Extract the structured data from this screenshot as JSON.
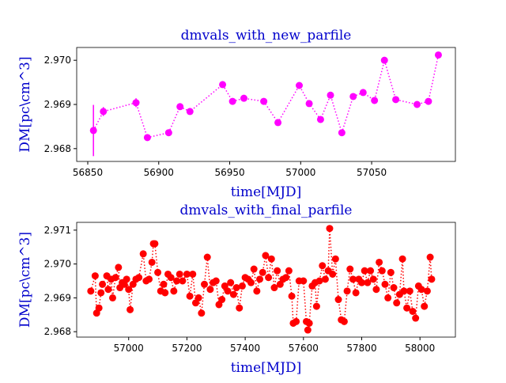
{
  "chart_data": [
    {
      "type": "line",
      "title": "dmvals_with_new_parfile",
      "xlabel": "time[MJD]",
      "ylabel": "DM[pc\\cm^3]",
      "color": "#ff00ff",
      "marker": "o",
      "linestyle": "dotted",
      "x": [
        56854,
        56861,
        56884,
        56892,
        56907,
        56915,
        56922,
        56945,
        56952,
        56960,
        56974,
        56984,
        56999,
        57006,
        57014,
        57021,
        57029,
        57037,
        57044,
        57052,
        57059,
        57067,
        57082,
        57090,
        57097
      ],
      "values": [
        2.96841,
        2.96884,
        2.96904,
        2.96825,
        2.96836,
        2.96895,
        2.96884,
        2.96945,
        2.96907,
        2.96914,
        2.96907,
        2.96859,
        2.96943,
        2.96902,
        2.96866,
        2.96921,
        2.96836,
        2.96918,
        2.96927,
        2.96909,
        2.97,
        2.96911,
        2.969,
        2.96907,
        2.97012
      ],
      "errors": [
        0.00058,
        0.0001,
        0.0001,
        5e-05,
        5e-05,
        5e-05,
        5e-05,
        5e-05,
        5e-05,
        5e-05,
        5e-05,
        5e-05,
        5e-05,
        5e-05,
        5e-05,
        5e-05,
        5e-05,
        5e-05,
        5e-05,
        5e-05,
        5e-05,
        5e-05,
        5e-05,
        5e-05,
        5e-05
      ],
      "xlim": [
        56842.2,
        57109
      ],
      "xticks": [
        56850,
        56900,
        56950,
        57000,
        57050
      ],
      "ylim": [
        2.96771,
        2.97029
      ],
      "yticks": [
        2.968,
        2.969,
        {
          "value": 2.97,
          "label": "2.970"
        }
      ]
    },
    {
      "type": "line",
      "title": "dmvals_with_final_parfile",
      "xlabel": "time[MJD]",
      "ylabel": "DM[pc\\cm^3]",
      "color": "#ff0000",
      "marker": "o",
      "linestyle": "dotted",
      "x": [
        56870,
        56885,
        56890,
        56898,
        56905,
        56910,
        56925,
        56930,
        56940,
        56945,
        56955,
        56965,
        56970,
        56978,
        56985,
        56993,
        57000,
        57005,
        57015,
        57025,
        57035,
        57050,
        57060,
        57070,
        57080,
        57085,
        57090,
        57100,
        57110,
        57120,
        57125,
        57135,
        57145,
        57155,
        57165,
        57175,
        57185,
        57200,
        57210,
        57220,
        57230,
        57240,
        57250,
        57260,
        57270,
        57280,
        57290,
        57300,
        57310,
        57320,
        57330,
        57340,
        57350,
        57360,
        57370,
        57380,
        57390,
        57400,
        57410,
        57420,
        57430,
        57440,
        57450,
        57460,
        57470,
        57480,
        57490,
        57500,
        57510,
        57520,
        57530,
        57540,
        57550,
        57560,
        57565,
        57575,
        57585,
        57600,
        57610,
        57615,
        57620,
        57630,
        57640,
        57645,
        57655,
        57665,
        57675,
        57685,
        57690,
        57700,
        57710,
        57720,
        57730,
        57740,
        57750,
        57760,
        57770,
        57780,
        57790,
        57800,
        57810,
        57820,
        57830,
        57840,
        57850,
        57860,
        57870,
        57880,
        57890,
        57900,
        57910,
        57920,
        57930,
        57940,
        57945,
        57955,
        57965,
        57975,
        57985,
        57995,
        58005,
        58015,
        58025,
        58035,
        58040
      ],
      "values": [
        2.9692,
        2.96965,
        2.96855,
        2.9687,
        2.96915,
        2.9694,
        2.96965,
        2.96925,
        2.96955,
        2.969,
        2.9696,
        2.9699,
        2.9693,
        2.96945,
        2.9694,
        2.96955,
        2.96925,
        2.96865,
        2.9694,
        2.96955,
        2.9696,
        2.9703,
        2.9695,
        2.96955,
        2.97005,
        2.9706,
        2.9706,
        2.96975,
        2.9692,
        2.9694,
        2.96915,
        2.9697,
        2.9696,
        2.9692,
        2.9695,
        2.9697,
        2.9695,
        2.9697,
        2.96905,
        2.9697,
        2.96885,
        2.969,
        2.96855,
        2.9694,
        2.9702,
        2.96925,
        2.96945,
        2.9695,
        2.9688,
        2.96895,
        2.96935,
        2.9692,
        2.96945,
        2.9691,
        2.9693,
        2.9687,
        2.96935,
        2.9696,
        2.96955,
        2.96945,
        2.96985,
        2.9692,
        2.96955,
        2.96975,
        2.97025,
        2.9696,
        2.97015,
        2.9693,
        2.9698,
        2.9694,
        2.96955,
        2.9696,
        2.9698,
        2.96905,
        2.96825,
        2.9683,
        2.9695,
        2.9695,
        2.9683,
        2.96805,
        2.96825,
        2.96935,
        2.96945,
        2.96875,
        2.9695,
        2.96995,
        2.96955,
        2.9698,
        2.97105,
        2.9697,
        2.97015,
        2.96895,
        2.96835,
        2.9683,
        2.9692,
        2.96985,
        2.96955,
        2.96915,
        2.96955,
        2.96945,
        2.9698,
        2.96945,
        2.9698,
        2.96955,
        2.96925,
        2.97005,
        2.9698,
        2.9694,
        2.969,
        2.96975,
        2.9693,
        2.96885,
        2.9691,
        2.97015,
        2.9692,
        2.9687,
        2.9692,
        2.9686,
        2.9684,
        2.96935,
        2.96925,
        2.96875,
        2.9692,
        2.9702,
        2.96955
      ],
      "xlim": [
        56821.6,
        58121.6
      ],
      "xticks": [
        57000,
        57200,
        57400,
        57600,
        57800,
        58000
      ],
      "ylim": [
        2.96784,
        2.97123
      ],
      "yticks": [
        2.968,
        2.969,
        {
          "value": 2.97,
          "label": "2.970"
        },
        2.971
      ]
    }
  ]
}
